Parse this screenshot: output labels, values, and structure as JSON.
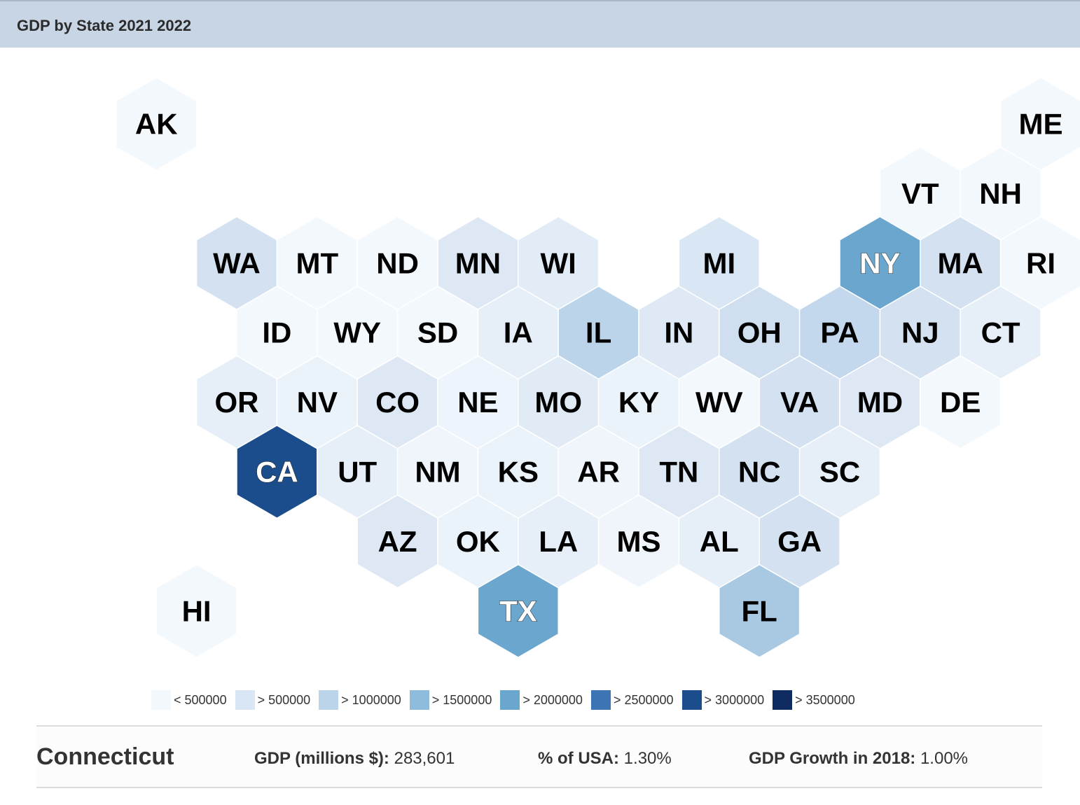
{
  "header": {
    "title": "GDP by State 2021 2022"
  },
  "colors": {
    "bin0": "#f3f8fd",
    "bin1": "#d9e6f4",
    "bin2": "#bcd4e9",
    "bin3": "#8fbcdc",
    "bin4": "#6aa6ce",
    "bin5": "#3d75b4",
    "bin6": "#1b4d8c",
    "bin7": "#0e2c61",
    "stroke": "#ffffff"
  },
  "legend": {
    "items": [
      {
        "label": "< 500000",
        "color": "#f3f8fd"
      },
      {
        "label": "> 500000",
        "color": "#d9e6f4"
      },
      {
        "label": "> 1000000",
        "color": "#bcd4e9"
      },
      {
        "label": "> 1500000",
        "color": "#8fbcdc"
      },
      {
        "label": "> 2000000",
        "color": "#6aa6ce"
      },
      {
        "label": "> 2500000",
        "color": "#3d75b4"
      },
      {
        "label": "> 3000000",
        "color": "#1b4d8c"
      },
      {
        "label": "> 3500000",
        "color": "#0e2c61"
      }
    ]
  },
  "map": {
    "states": [
      {
        "abbr": "AK",
        "row": 0,
        "col": 1,
        "fill": "#f3f8fd",
        "text": "#000000"
      },
      {
        "abbr": "ME",
        "row": 0,
        "col": 12,
        "fill": "#f3f8fd",
        "text": "#000000"
      },
      {
        "abbr": "VT",
        "row": 1,
        "col": 10,
        "fill": "#f3f8fd",
        "text": "#000000"
      },
      {
        "abbr": "NH",
        "row": 1,
        "col": 11,
        "fill": "#f3f8fd",
        "text": "#000000"
      },
      {
        "abbr": "WA",
        "row": 2,
        "col": 2,
        "fill": "#d3e1f0",
        "text": "#000000"
      },
      {
        "abbr": "MT",
        "row": 2,
        "col": 3,
        "fill": "#f3f8fd",
        "text": "#000000"
      },
      {
        "abbr": "ND",
        "row": 2,
        "col": 4,
        "fill": "#f3f8fd",
        "text": "#000000"
      },
      {
        "abbr": "MN",
        "row": 2,
        "col": 5,
        "fill": "#dde8f4",
        "text": "#000000"
      },
      {
        "abbr": "WI",
        "row": 2,
        "col": 6,
        "fill": "#e2ecf6",
        "text": "#000000"
      },
      {
        "abbr": "MI",
        "row": 2,
        "col": 8,
        "fill": "#d9e6f3",
        "text": "#000000"
      },
      {
        "abbr": "NY",
        "row": 2,
        "col": 10,
        "fill": "#6aa6ce",
        "text": "#ffffff"
      },
      {
        "abbr": "MA",
        "row": 2,
        "col": 11,
        "fill": "#d3e1f0",
        "text": "#000000"
      },
      {
        "abbr": "RI",
        "row": 2,
        "col": 12,
        "fill": "#f3f8fd",
        "text": "#000000"
      },
      {
        "abbr": "ID",
        "row": 3,
        "col": 2,
        "fill": "#f3f8fd",
        "text": "#000000"
      },
      {
        "abbr": "WY",
        "row": 3,
        "col": 3,
        "fill": "#f3f8fd",
        "text": "#000000"
      },
      {
        "abbr": "SD",
        "row": 3,
        "col": 4,
        "fill": "#f3f8fd",
        "text": "#000000"
      },
      {
        "abbr": "IA",
        "row": 3,
        "col": 5,
        "fill": "#e6eff8",
        "text": "#000000"
      },
      {
        "abbr": "IL",
        "row": 3,
        "col": 6,
        "fill": "#bcd4e9",
        "text": "#000000"
      },
      {
        "abbr": "IN",
        "row": 3,
        "col": 7,
        "fill": "#dfe9f5",
        "text": "#000000"
      },
      {
        "abbr": "OH",
        "row": 3,
        "col": 8,
        "fill": "#d0dfef",
        "text": "#000000"
      },
      {
        "abbr": "PA",
        "row": 3,
        "col": 9,
        "fill": "#c3d8ec",
        "text": "#000000"
      },
      {
        "abbr": "NJ",
        "row": 3,
        "col": 10,
        "fill": "#d3e1f0",
        "text": "#000000"
      },
      {
        "abbr": "CT",
        "row": 3,
        "col": 11,
        "fill": "#e6eff8",
        "text": "#000000"
      },
      {
        "abbr": "OR",
        "row": 4,
        "col": 2,
        "fill": "#e6eff8",
        "text": "#000000"
      },
      {
        "abbr": "NV",
        "row": 4,
        "col": 3,
        "fill": "#eaf2fa",
        "text": "#000000"
      },
      {
        "abbr": "CO",
        "row": 4,
        "col": 4,
        "fill": "#dde8f4",
        "text": "#000000"
      },
      {
        "abbr": "NE",
        "row": 4,
        "col": 5,
        "fill": "#eef4fb",
        "text": "#000000"
      },
      {
        "abbr": "MO",
        "row": 4,
        "col": 6,
        "fill": "#e1ebf6",
        "text": "#000000"
      },
      {
        "abbr": "KY",
        "row": 4,
        "col": 7,
        "fill": "#eaf2fa",
        "text": "#000000"
      },
      {
        "abbr": "WV",
        "row": 4,
        "col": 8,
        "fill": "#f3f8fd",
        "text": "#000000"
      },
      {
        "abbr": "VA",
        "row": 4,
        "col": 9,
        "fill": "#d3e1f0",
        "text": "#000000"
      },
      {
        "abbr": "MD",
        "row": 4,
        "col": 10,
        "fill": "#dde8f4",
        "text": "#000000"
      },
      {
        "abbr": "DE",
        "row": 4,
        "col": 11,
        "fill": "#f3f8fd",
        "text": "#000000"
      },
      {
        "abbr": "CA",
        "row": 5,
        "col": 2,
        "fill": "#1b4d8c",
        "text": "#ffffff"
      },
      {
        "abbr": "UT",
        "row": 5,
        "col": 3,
        "fill": "#e6eff8",
        "text": "#000000"
      },
      {
        "abbr": "NM",
        "row": 5,
        "col": 4,
        "fill": "#f0f5fb",
        "text": "#000000"
      },
      {
        "abbr": "KS",
        "row": 5,
        "col": 5,
        "fill": "#eaf2fa",
        "text": "#000000"
      },
      {
        "abbr": "AR",
        "row": 5,
        "col": 6,
        "fill": "#eff5fb",
        "text": "#000000"
      },
      {
        "abbr": "TN",
        "row": 5,
        "col": 7,
        "fill": "#dde8f4",
        "text": "#000000"
      },
      {
        "abbr": "NC",
        "row": 5,
        "col": 8,
        "fill": "#d3e1f0",
        "text": "#000000"
      },
      {
        "abbr": "SC",
        "row": 5,
        "col": 9,
        "fill": "#e6eff8",
        "text": "#000000"
      },
      {
        "abbr": "AZ",
        "row": 6,
        "col": 4,
        "fill": "#dde8f4",
        "text": "#000000"
      },
      {
        "abbr": "OK",
        "row": 6,
        "col": 5,
        "fill": "#eaf2fa",
        "text": "#000000"
      },
      {
        "abbr": "LA",
        "row": 6,
        "col": 6,
        "fill": "#e6eff8",
        "text": "#000000"
      },
      {
        "abbr": "MS",
        "row": 6,
        "col": 7,
        "fill": "#f0f5fb",
        "text": "#000000"
      },
      {
        "abbr": "AL",
        "row": 6,
        "col": 8,
        "fill": "#e6eff8",
        "text": "#000000"
      },
      {
        "abbr": "GA",
        "row": 6,
        "col": 9,
        "fill": "#d3e1f0",
        "text": "#000000"
      },
      {
        "abbr": "HI",
        "row": 7,
        "col": 1,
        "fill": "#f3f8fd",
        "text": "#000000"
      },
      {
        "abbr": "TX",
        "row": 7,
        "col": 5,
        "fill": "#6aa6ce",
        "text": "#ffffff"
      },
      {
        "abbr": "FL",
        "row": 7,
        "col": 8,
        "fill": "#a9c9e3",
        "text": "#000000"
      }
    ]
  },
  "info": {
    "state_name": "Connecticut",
    "gdp_label": "GDP (millions $):",
    "gdp_value": "283,601",
    "pct_label": "% of USA:",
    "pct_value": "1.30%",
    "growth_label": "GDP Growth in 2018:",
    "growth_value": "1.00%"
  }
}
